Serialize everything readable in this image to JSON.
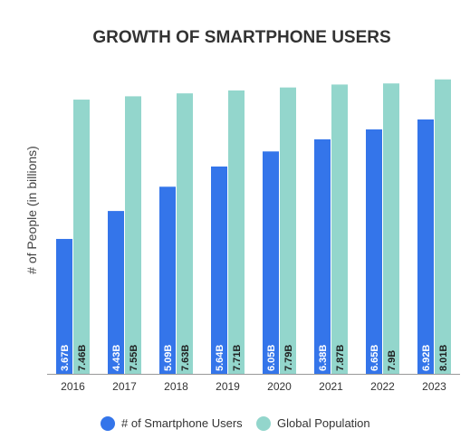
{
  "chart_data": {
    "type": "bar",
    "title": "GROWTH OF SMARTPHONE USERS",
    "xlabel": "",
    "ylabel": "# of People (in billions)",
    "ylim": [
      0,
      8.2
    ],
    "grid": false,
    "legend_position": "bottom",
    "categories": [
      "2016",
      "2017",
      "2018",
      "2019",
      "2020",
      "2021",
      "2022",
      "2023"
    ],
    "series": [
      {
        "name": "# of Smartphone Users",
        "color": "#3475ea",
        "label_color": "#ffffff",
        "values": [
          3.67,
          4.43,
          5.09,
          5.64,
          6.05,
          6.38,
          6.65,
          6.92
        ],
        "labels": [
          "3.67B",
          "4.43B",
          "5.09B",
          "5.64B",
          "6.05B",
          "6.38B",
          "6.65B",
          "6.92B"
        ]
      },
      {
        "name": "Global Population",
        "color": "#93d6cc",
        "label_color": "#1f1f1f",
        "values": [
          7.46,
          7.55,
          7.63,
          7.71,
          7.79,
          7.87,
          7.9,
          8.01
        ],
        "labels": [
          "7.46B",
          "7.55B",
          "7.63B",
          "7.71B",
          "7.79B",
          "7.87B",
          "7.9B",
          "8.01B"
        ]
      }
    ]
  }
}
